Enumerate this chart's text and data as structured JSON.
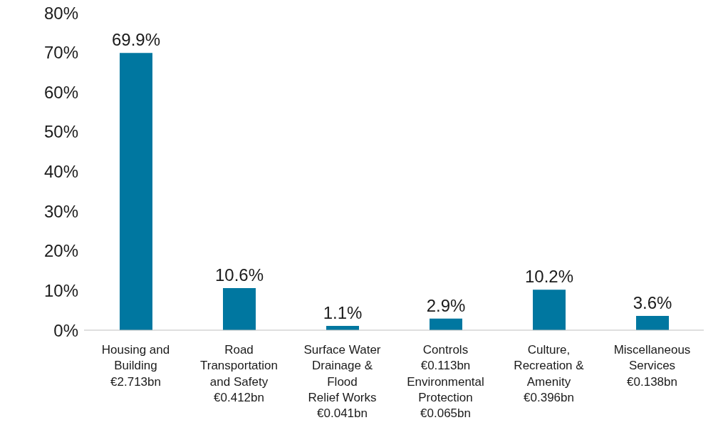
{
  "chart_data": {
    "type": "bar",
    "categories": [
      "Housing and\nBuilding\n€2.713bn",
      "Road\nTransportation\nand Safety\n€0.412bn",
      "Surface Water\nDrainage &\nFlood\nRelief Works\n€0.041bn",
      "Controls\n€0.113bn\nEnvironmental\nProtection\n€0.065bn",
      "Culture,\nRecreation &\nAmenity\n€0.396bn",
      "Miscellaneous\nServices\n€0.138bn"
    ],
    "values": [
      69.9,
      10.6,
      1.1,
      2.9,
      10.2,
      3.6
    ],
    "value_labels": [
      "69.9%",
      "10.6%",
      "1.1%",
      "2.9%",
      "10.2%",
      "3.6%"
    ],
    "color": "#0077a0",
    "ylim": [
      0,
      80
    ],
    "yticks": [
      {
        "value": 0,
        "label": "0%"
      },
      {
        "value": 10,
        "label": "10%"
      },
      {
        "value": 20,
        "label": "20%"
      },
      {
        "value": 30,
        "label": "30%"
      },
      {
        "value": 40,
        "label": "40%"
      },
      {
        "value": 50,
        "label": "50%"
      },
      {
        "value": 60,
        "label": "60%"
      },
      {
        "value": 70,
        "label": "70%"
      },
      {
        "value": 80,
        "label": "80%"
      }
    ],
    "grid": false,
    "legend": false
  }
}
